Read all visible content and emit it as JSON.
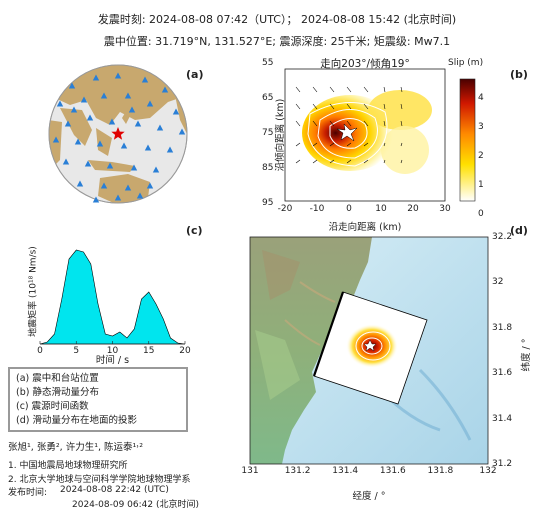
{
  "header": {
    "line1": "发震时刻: 2024-08-08 07:42（UTC）；  2024-08-08  15:42 (北京时间)",
    "line2": "震中位置: 31.719°N,  131.527°E;  震源深度: 25千米; 矩震级: Mw7.1"
  },
  "panel_a": {
    "label": "(a)"
  },
  "panel_b": {
    "label": "(b)",
    "title": "走向203°/倾角19°",
    "xlabel": "沿走向距离 (km)",
    "ylabel": "沿倾向距离 (km)",
    "xticks": [
      "-20",
      "-10",
      "0",
      "10",
      "20",
      "30"
    ],
    "yticks": [
      "55",
      "65",
      "75",
      "85",
      "95"
    ],
    "colorbar_title": "Slip (m)",
    "colorbar_ticks": [
      "4",
      "3",
      "2",
      "1",
      "0"
    ],
    "colors": {
      "low": "#ffffff",
      "mid": "#ffd400",
      "high": "#8a0000"
    }
  },
  "panel_c": {
    "label": "(c)",
    "ylabel": "地震矩率 (10¹⁸ Nm/s)",
    "xlabel": "时间 / s",
    "xticks": [
      "0",
      "5",
      "10",
      "15",
      "20"
    ],
    "fill_color": "#00e5ee"
  },
  "panel_d": {
    "label": "(d)",
    "xlabel": "经度 / °",
    "ylabel": "纬度 / °",
    "xticks": [
      "131",
      "131.2",
      "131.4",
      "131.6",
      "131.8",
      "132"
    ],
    "yticks": [
      "32.2",
      "32",
      "31.8",
      "31.6",
      "31.4",
      "31.2"
    ]
  },
  "legend": {
    "items": [
      "(a) 震中和台站位置",
      "(b) 静态滑动量分布",
      "(c) 震源时间函数",
      "(d) 滑动量分布在地面的投影"
    ]
  },
  "credits": {
    "authors": "张旭¹, 张勇², 许力生¹, 陈运泰¹˒²",
    "affil1": "1. 中国地震局地球物理研究所",
    "affil2": "2. 北京大学地球与空间科学学院地球物理学系",
    "release_label": "发布时间:",
    "release_utc": "2024-08-08  22:42 (UTC)",
    "release_bj": "2024-08-09  06:42 (北京时间)"
  }
}
